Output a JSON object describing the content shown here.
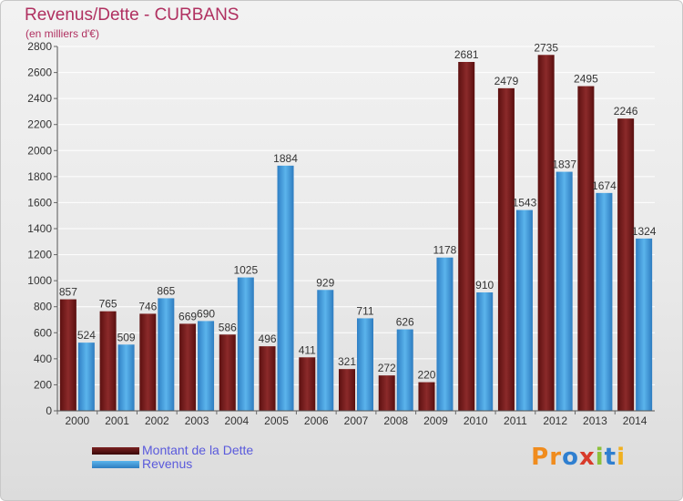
{
  "title": "Revenus/Dette - CURBANS",
  "subtitle": "(en milliers d'€)",
  "logo": {
    "text": "Proxiti",
    "letters": [
      {
        "ch": "P",
        "color": "#f08c1e"
      },
      {
        "ch": "r",
        "color": "#f08c1e"
      },
      {
        "ch": "o",
        "color": "#2f7fd0"
      },
      {
        "ch": "x",
        "color": "#d83a2a"
      },
      {
        "ch": "i",
        "color": "#8cc03a"
      },
      {
        "ch": "t",
        "color": "#2f7fd0"
      },
      {
        "ch": "i",
        "color": "#f0b020"
      }
    ]
  },
  "colors": {
    "dette": "#7a2020",
    "revenus": "#4aa3e0",
    "axis_text": "#333333",
    "grid": "#ffffff"
  },
  "chart_data": {
    "type": "bar",
    "categories": [
      "2000",
      "2001",
      "2002",
      "2003",
      "2004",
      "2005",
      "2006",
      "2007",
      "2008",
      "2009",
      "2010",
      "2011",
      "2012",
      "2013",
      "2014"
    ],
    "series": [
      {
        "name": "Montant de la Dette",
        "values": [
          857,
          765,
          746,
          669,
          586,
          496,
          411,
          321,
          272,
          220,
          2681,
          2479,
          2735,
          2495,
          2246
        ]
      },
      {
        "name": "Revenus",
        "values": [
          524,
          509,
          865,
          690,
          1025,
          1884,
          929,
          711,
          626,
          1178,
          910,
          1543,
          1837,
          1674,
          1324
        ]
      }
    ],
    "ylim": [
      0,
      2800
    ],
    "yticks": [
      0,
      200,
      400,
      600,
      800,
      1000,
      1200,
      1400,
      1600,
      1800,
      2000,
      2200,
      2400,
      2600,
      2800
    ],
    "grid": true,
    "legend": "bottom-left"
  }
}
